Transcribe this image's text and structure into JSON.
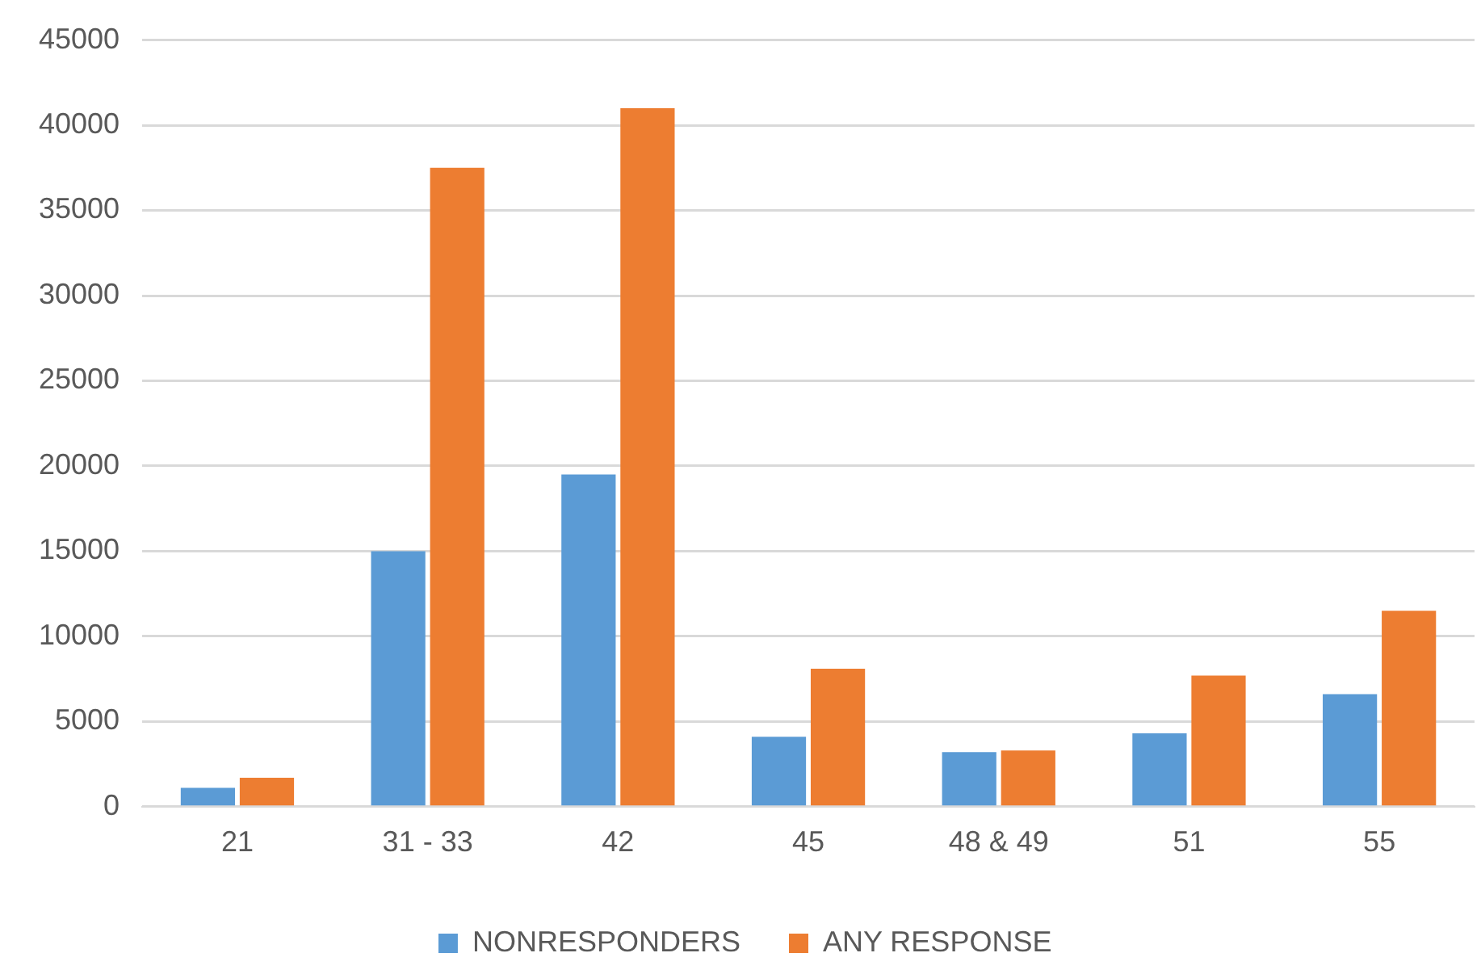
{
  "chart_data": {
    "type": "bar",
    "categories": [
      "21",
      "31 - 33",
      "42",
      "45",
      "48 & 49",
      "51",
      "55"
    ],
    "series": [
      {
        "name": "NONRESPONDERS",
        "color": "#5b9bd5",
        "values": [
          1100,
          15000,
          19500,
          4100,
          3200,
          4300,
          6600
        ]
      },
      {
        "name": "ANY RESPONSE",
        "color": "#ed7d31",
        "values": [
          1700,
          37500,
          41000,
          8100,
          3300,
          7700,
          11500
        ]
      }
    ],
    "ylim": [
      0,
      45000
    ],
    "yticks": [
      0,
      5000,
      10000,
      15000,
      20000,
      25000,
      30000,
      35000,
      40000,
      45000
    ],
    "grid": "y",
    "legend": "bottom"
  }
}
